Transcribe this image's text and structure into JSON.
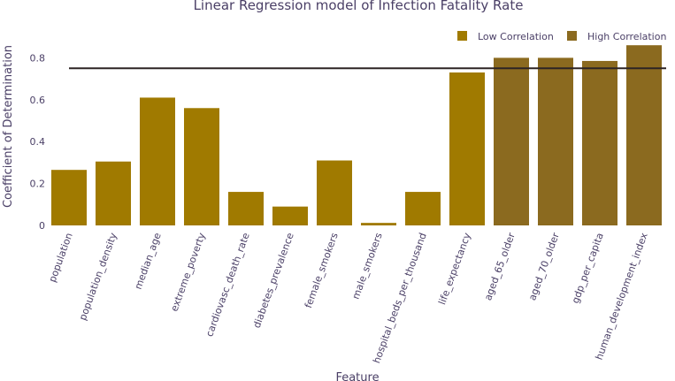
{
  "chart_data": {
    "type": "bar",
    "title": "Linear Regression model of Infection Fatality Rate",
    "xlabel": "Feature",
    "ylabel": "Coefficient of Determination",
    "ylim": [
      0,
      0.9
    ],
    "yticks": [
      "0",
      "0.2",
      "0.4",
      "0.6",
      "0.8"
    ],
    "ytick_values": [
      0,
      0.2,
      0.4,
      0.6,
      0.8
    ],
    "threshold": 0.75,
    "grid": false,
    "legend_position": "top-right",
    "categories": [
      "population",
      "population_density",
      "median_age",
      "extreme_poverty",
      "cardiovasc_death_rate",
      "diabetes_prevalence",
      "female_smokers",
      "male_smokers",
      "hospital_beds_per_thousand",
      "life_expectancy",
      "aged_65_older",
      "aged_70_older",
      "gdp_per_capita",
      "human_development_index"
    ],
    "series": [
      {
        "name": "Low Correlation",
        "color": "#a07a00",
        "values": [
          0.265,
          0.305,
          0.61,
          0.56,
          0.16,
          0.09,
          0.31,
          0.012,
          0.16,
          0.73,
          null,
          null,
          null,
          null
        ]
      },
      {
        "name": "High Correlation",
        "color": "#8b6a1f",
        "values": [
          null,
          null,
          null,
          null,
          null,
          null,
          null,
          null,
          null,
          null,
          0.8,
          0.8,
          0.785,
          0.86
        ]
      }
    ]
  }
}
